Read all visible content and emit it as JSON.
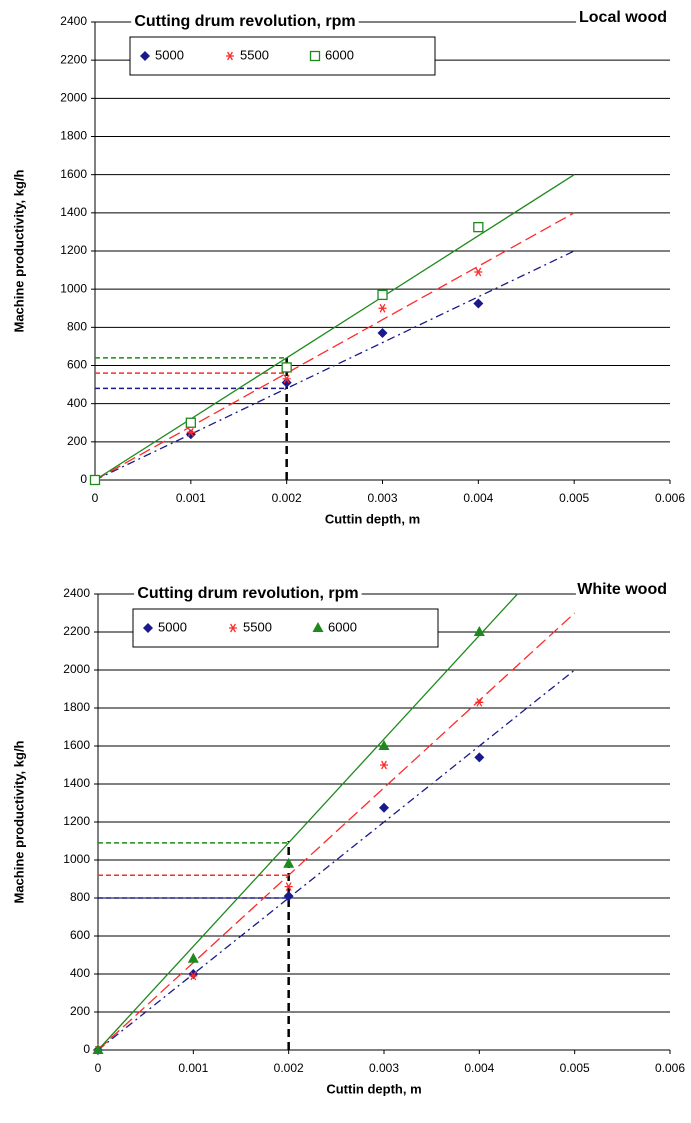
{
  "chart_data": [
    {
      "type": "scatter",
      "title": "Cutting drum revolution, rpm",
      "subtitle": "Local wood",
      "xlabel": "Cuttin depth, m",
      "ylabel": "Machine productivity, kg/h",
      "x": [
        0,
        0.001,
        0.002,
        0.003,
        0.004
      ],
      "series": [
        {
          "name": "5000",
          "color": "#1a1a8c",
          "marker": "diamond",
          "values": [
            0,
            240,
            510,
            770,
            925
          ],
          "trend": {
            "x": [
              0,
              0.005
            ],
            "y": [
              0,
              1200
            ]
          },
          "guide": 480
        },
        {
          "name": "5500",
          "color": "#ff2a2a",
          "marker": "asterisk",
          "values": [
            0,
            250,
            530,
            900,
            1090
          ],
          "trend": {
            "x": [
              0,
              0.005
            ],
            "y": [
              0,
              1400
            ]
          },
          "guide": 560
        },
        {
          "name": "6000",
          "color": "#1e8a1e",
          "marker": "open-square",
          "values": [
            0,
            300,
            590,
            970,
            1325
          ],
          "trend": {
            "x": [
              0,
              0.005
            ],
            "y": [
              0,
              1600
            ]
          },
          "guide": 640
        }
      ],
      "marker_x": 0.002,
      "marker_top": 640,
      "xlim": [
        0,
        0.006
      ],
      "xticks": [
        0,
        0.001,
        0.002,
        0.003,
        0.004,
        0.005,
        0.006
      ],
      "ylim": [
        0,
        2400
      ],
      "yticks": [
        0,
        200,
        400,
        600,
        800,
        1000,
        1200,
        1400,
        1600,
        1800,
        2000,
        2200,
        2400
      ],
      "grid": true
    },
    {
      "type": "scatter",
      "title": "Cutting drum revolution, rpm",
      "subtitle": "White wood",
      "xlabel": "Cuttin depth, m",
      "ylabel": "Machine productivity, kg/h",
      "x": [
        0,
        0.001,
        0.002,
        0.003,
        0.004
      ],
      "series": [
        {
          "name": "5000",
          "color": "#1a1a8c",
          "marker": "diamond",
          "values": [
            0,
            400,
            810,
            1275,
            1540
          ],
          "trend": {
            "x": [
              0,
              0.005
            ],
            "y": [
              0,
              2000
            ]
          },
          "guide": 800
        },
        {
          "name": "5500",
          "color": "#ff2a2a",
          "marker": "asterisk",
          "values": [
            0,
            390,
            860,
            1500,
            1830
          ],
          "trend": {
            "x": [
              0,
              0.005
            ],
            "y": [
              0,
              2300
            ]
          },
          "guide": 920
        },
        {
          "name": "6000",
          "color": "#1e8a1e",
          "marker": "filled-triangle",
          "values": [
            0,
            480,
            980,
            1600,
            2200
          ],
          "trend": {
            "x": [
              0,
              0.0044
            ],
            "y": [
              0,
              2400
            ]
          },
          "guide": 1090
        }
      ],
      "marker_x": 0.002,
      "marker_top": 1100,
      "xlim": [
        0,
        0.006
      ],
      "xticks": [
        0,
        0.001,
        0.002,
        0.003,
        0.004,
        0.005,
        0.006
      ],
      "ylim": [
        0,
        2400
      ],
      "yticks": [
        0,
        200,
        400,
        600,
        800,
        1000,
        1200,
        1400,
        1600,
        1800,
        2000,
        2200,
        2400
      ],
      "grid": true
    }
  ]
}
